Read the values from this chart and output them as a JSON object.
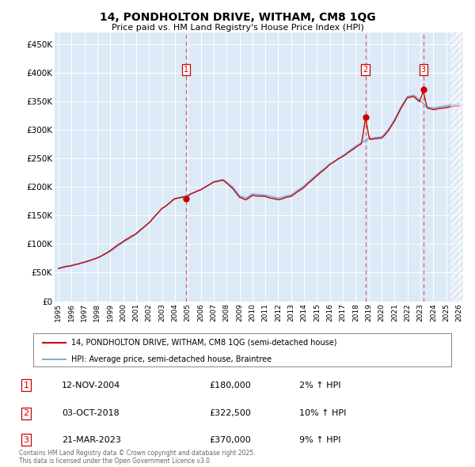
{
  "title": "14, PONDHOLTON DRIVE, WITHAM, CM8 1QG",
  "subtitle": "Price paid vs. HM Land Registry's House Price Index (HPI)",
  "ylabel_ticks": [
    "£0",
    "£50K",
    "£100K",
    "£150K",
    "£200K",
    "£250K",
    "£300K",
    "£350K",
    "£400K",
    "£450K"
  ],
  "ytick_values": [
    0,
    50000,
    100000,
    150000,
    200000,
    250000,
    300000,
    350000,
    400000,
    450000
  ],
  "ylim": [
    0,
    470000
  ],
  "xlim_start": 1994.7,
  "xlim_end": 2026.3,
  "bg_color": "#dce9f7",
  "line_color_hpi": "#7bafd4",
  "line_color_price": "#cc0000",
  "sale_marker_color": "#cc0000",
  "dashed_line_color": "#cc6666",
  "legend_label_price": "14, PONDHOLTON DRIVE, WITHAM, CM8 1QG (semi-detached house)",
  "legend_label_hpi": "HPI: Average price, semi-detached house, Braintree",
  "sales": [
    {
      "num": 1,
      "date": "12-NOV-2004",
      "price": 180000,
      "pct": "2%",
      "x_year": 2004.87
    },
    {
      "num": 2,
      "date": "03-OCT-2018",
      "price": 322500,
      "pct": "10%",
      "x_year": 2018.75
    },
    {
      "num": 3,
      "date": "21-MAR-2023",
      "price": 370000,
      "pct": "9%",
      "x_year": 2023.22
    }
  ],
  "table_rows": [
    {
      "num": 1,
      "date": "12-NOV-2004",
      "price": "£180,000",
      "pct": "2% ↑ HPI"
    },
    {
      "num": 2,
      "date": "03-OCT-2018",
      "price": "£322,500",
      "pct": "10% ↑ HPI"
    },
    {
      "num": 3,
      "date": "21-MAR-2023",
      "price": "£370,000",
      "pct": "9% ↑ HPI"
    }
  ],
  "footer": "Contains HM Land Registry data © Crown copyright and database right 2025.\nThis data is licensed under the Open Government Licence v3.0."
}
